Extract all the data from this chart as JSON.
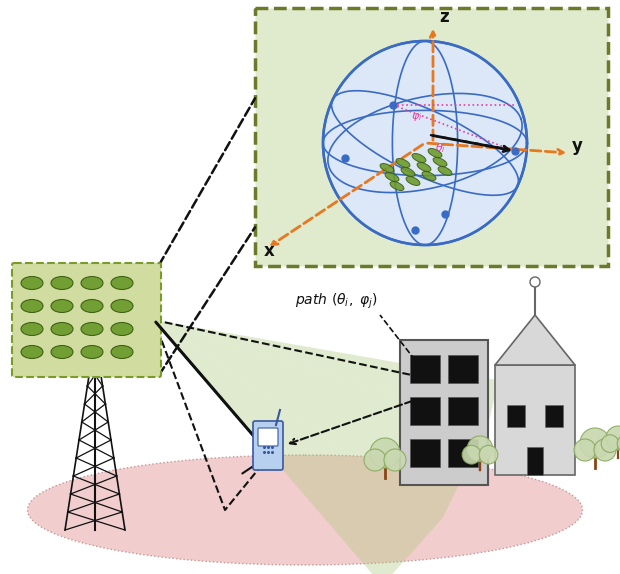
{
  "bg_color": "#ffffff",
  "sphere_color": "#3a6bc4",
  "panel_bg": "#e0eacc",
  "panel_border": "#6b7a2a",
  "orange_color": "#e87820",
  "pink_color": "#e040a0",
  "green_elem": "#6a9a2a",
  "green_elem_edge": "#3a5a10",
  "green_beam_fill": "#b0c880",
  "pink_ground": "#f0c8c8",
  "pink_ground_edge": "#c09090",
  "array_panel_bg": "#d0dca0",
  "array_panel_edge": "#7a9a2a",
  "building_fill": "#cccccc",
  "building_edge": "#555555",
  "building_win": "#111111",
  "church_fill": "#d8d8d8",
  "church_edge": "#666666",
  "tree_foliage": "#c8d8b0",
  "tree_foliage_edge": "#8aaa60",
  "phone_fill": "#b8d0f0",
  "phone_edge": "#3858a0",
  "black": "#111111",
  "dark_green_border": "#556622",
  "sphere_fill": "#dce8f8"
}
